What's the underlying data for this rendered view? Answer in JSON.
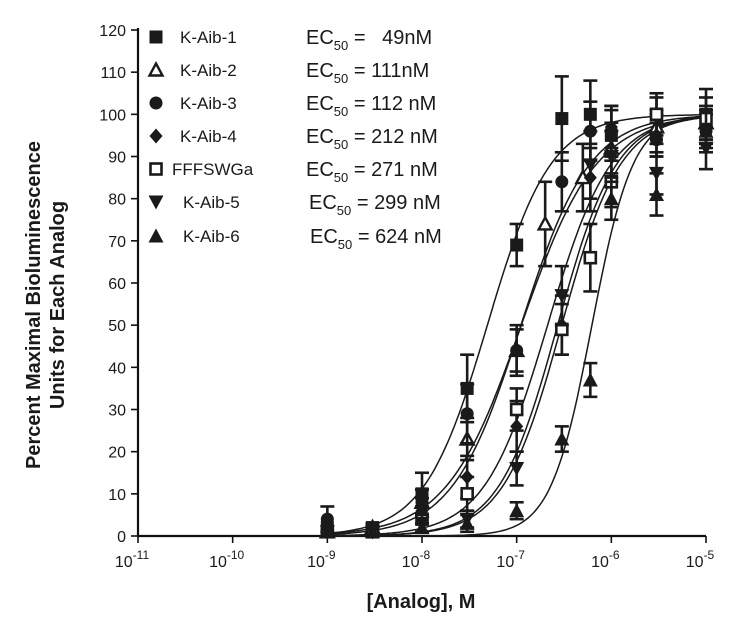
{
  "chart_data": {
    "type": "scatter",
    "title": "",
    "xlabel": "[Analog], M",
    "ylabel": "Percent Maximal Bioluminescence Units for Each Analog",
    "ylabel_lines": [
      "Percent Maximal Bioluminescence",
      "Units for Each Analog"
    ],
    "xscale": "log10",
    "xlim_exp": [
      -11,
      -5
    ],
    "ylim": [
      0,
      120
    ],
    "y_ticks": [
      0,
      10,
      20,
      30,
      40,
      50,
      60,
      70,
      80,
      90,
      100,
      110,
      120
    ],
    "x_tick_exponents": [
      -11,
      -10,
      -9,
      -8,
      -7,
      -6,
      -5
    ],
    "x_tick_labels": [
      "10-11",
      "10-10",
      "10-9",
      "10-8",
      "10-7",
      "10-6",
      "10-5"
    ],
    "x_tick_base": "10",
    "x_tick_superscripts": [
      "-11",
      "-10",
      "-9",
      "-8",
      "-7",
      "-6",
      "-5"
    ],
    "grid": false,
    "legend_position": "top-left",
    "series": [
      {
        "name": "K-Aib-1",
        "marker": "square-filled",
        "ec50_text": "49nM",
        "ec50_prefix": "EC",
        "ec50_sub": "50",
        "ec50_eq": " =   ",
        "ec50_nM": 49,
        "hill": 1.3,
        "points": [
          {
            "x": 1e-09,
            "y": 2,
            "err": 0
          },
          {
            "x": 3e-09,
            "y": 2,
            "err": 1
          },
          {
            "x": 1e-08,
            "y": 10,
            "err": 5
          },
          {
            "x": 3e-08,
            "y": 35,
            "err": 8
          },
          {
            "x": 1e-07,
            "y": 69,
            "err": 5
          },
          {
            "x": 3e-07,
            "y": 99,
            "err": 10
          },
          {
            "x": 6e-07,
            "y": 100,
            "err": 8
          },
          {
            "x": 1e-06,
            "y": 95,
            "err": 6
          },
          {
            "x": 3e-06,
            "y": 100,
            "err": 4
          },
          {
            "x": 1e-05,
            "y": 100,
            "err": 6
          }
        ]
      },
      {
        "name": "K-Aib-2",
        "marker": "triangle-open",
        "ec50_text": "111nM",
        "ec50_prefix": "EC",
        "ec50_sub": "50",
        "ec50_eq": " = ",
        "ec50_nM": 111,
        "hill": 1.2,
        "points": [
          {
            "x": 1e-09,
            "y": 1,
            "err": 0
          },
          {
            "x": 3e-09,
            "y": 2,
            "err": 1
          },
          {
            "x": 1e-08,
            "y": 8,
            "err": 3
          },
          {
            "x": 3e-08,
            "y": 23,
            "err": 5
          },
          {
            "x": 1e-07,
            "y": 44,
            "err": 5
          },
          {
            "x": 2e-07,
            "y": 74,
            "err": 10
          },
          {
            "x": 5e-07,
            "y": 85,
            "err": 8
          },
          {
            "x": 1e-06,
            "y": 92,
            "err": 6
          },
          {
            "x": 3e-06,
            "y": 97,
            "err": 4
          },
          {
            "x": 1e-05,
            "y": 98,
            "err": 4
          }
        ]
      },
      {
        "name": "K-Aib-3",
        "marker": "circle-filled",
        "ec50_text": "112 nM",
        "ec50_prefix": "EC",
        "ec50_sub": "50",
        "ec50_eq": " = ",
        "ec50_nM": 112,
        "hill": 1.1,
        "points": [
          {
            "x": 1e-09,
            "y": 4,
            "err": 3
          },
          {
            "x": 3e-09,
            "y": 2,
            "err": 1
          },
          {
            "x": 1e-08,
            "y": 8,
            "err": 3
          },
          {
            "x": 3e-08,
            "y": 29,
            "err": 7
          },
          {
            "x": 1e-07,
            "y": 44,
            "err": 6
          },
          {
            "x": 3e-07,
            "y": 84,
            "err": 7
          },
          {
            "x": 6e-07,
            "y": 96,
            "err": 7
          },
          {
            "x": 1e-06,
            "y": 96,
            "err": 6
          },
          {
            "x": 3e-06,
            "y": 94,
            "err": 4
          },
          {
            "x": 1e-05,
            "y": 96,
            "err": 4
          }
        ]
      },
      {
        "name": "K-Aib-4",
        "marker": "diamond-filled",
        "ec50_text": "212 nM",
        "ec50_prefix": "EC",
        "ec50_sub": "50",
        "ec50_eq": " = ",
        "ec50_nM": 212,
        "hill": 1.3,
        "points": [
          {
            "x": 1e-09,
            "y": 1,
            "err": 0
          },
          {
            "x": 3e-09,
            "y": 1,
            "err": 1
          },
          {
            "x": 1e-08,
            "y": 6,
            "err": 3
          },
          {
            "x": 3e-08,
            "y": 14,
            "err": 5
          },
          {
            "x": 1e-07,
            "y": 26,
            "err": 6
          },
          {
            "x": 3e-07,
            "y": 50,
            "err": 7
          },
          {
            "x": 6e-07,
            "y": 85,
            "err": 8
          },
          {
            "x": 1e-06,
            "y": 97,
            "err": 5
          },
          {
            "x": 3e-06,
            "y": 95,
            "err": 5
          },
          {
            "x": 1e-05,
            "y": 97,
            "err": 4
          }
        ]
      },
      {
        "name": "FFFSWGa",
        "marker": "square-open",
        "ec50_text": "271 nM",
        "ec50_prefix": "EC",
        "ec50_sub": "50",
        "ec50_eq": " = ",
        "ec50_nM": 271,
        "hill": 1.4,
        "points": [
          {
            "x": 1e-09,
            "y": 1,
            "err": 0
          },
          {
            "x": 3e-09,
            "y": 1,
            "err": 1
          },
          {
            "x": 1e-08,
            "y": 4,
            "err": 3
          },
          {
            "x": 3e-08,
            "y": 10,
            "err": 4
          },
          {
            "x": 1e-07,
            "y": 30,
            "err": 5
          },
          {
            "x": 3e-07,
            "y": 49,
            "err": 6
          },
          {
            "x": 6e-07,
            "y": 66,
            "err": 8
          },
          {
            "x": 1e-06,
            "y": 84,
            "err": 6
          },
          {
            "x": 3e-06,
            "y": 100,
            "err": 5
          },
          {
            "x": 1e-05,
            "y": 99,
            "err": 5
          }
        ]
      },
      {
        "name": "K-Aib-5",
        "marker": "triangle-down-filled",
        "ec50_text": "299 nM",
        "ec50_prefix": "EC",
        "ec50_sub": "50",
        "ec50_eq": " = ",
        "ec50_nM": 299,
        "hill": 1.4,
        "points": [
          {
            "x": 1e-09,
            "y": 1,
            "err": 0
          },
          {
            "x": 3e-09,
            "y": 1,
            "err": 1
          },
          {
            "x": 1e-08,
            "y": 3,
            "err": 2
          },
          {
            "x": 3e-08,
            "y": 4,
            "err": 2
          },
          {
            "x": 1e-07,
            "y": 16,
            "err": 4
          },
          {
            "x": 3e-07,
            "y": 57,
            "err": 7
          },
          {
            "x": 6e-07,
            "y": 88,
            "err": 8
          },
          {
            "x": 1e-06,
            "y": 90,
            "err": 6
          },
          {
            "x": 3e-06,
            "y": 86,
            "err": 5
          },
          {
            "x": 1e-05,
            "y": 92,
            "err": 5
          }
        ]
      },
      {
        "name": "K-Aib-6",
        "marker": "triangle-filled",
        "ec50_text": "624 nM",
        "ec50_prefix": "EC",
        "ec50_sub": "50",
        "ec50_eq": " = ",
        "ec50_nM": 624,
        "hill": 2.0,
        "points": [
          {
            "x": 1e-09,
            "y": 1,
            "err": 0
          },
          {
            "x": 3e-09,
            "y": 1,
            "err": 1
          },
          {
            "x": 1e-08,
            "y": 2,
            "err": 1
          },
          {
            "x": 3e-08,
            "y": 3,
            "err": 2
          },
          {
            "x": 1e-07,
            "y": 6,
            "err": 2
          },
          {
            "x": 3e-07,
            "y": 23,
            "err": 3
          },
          {
            "x": 6e-07,
            "y": 37,
            "err": 4
          },
          {
            "x": 1e-06,
            "y": 80,
            "err": 5
          },
          {
            "x": 3e-06,
            "y": 81,
            "err": 5
          },
          {
            "x": 1e-05,
            "y": 96,
            "err": 5
          }
        ]
      }
    ]
  }
}
